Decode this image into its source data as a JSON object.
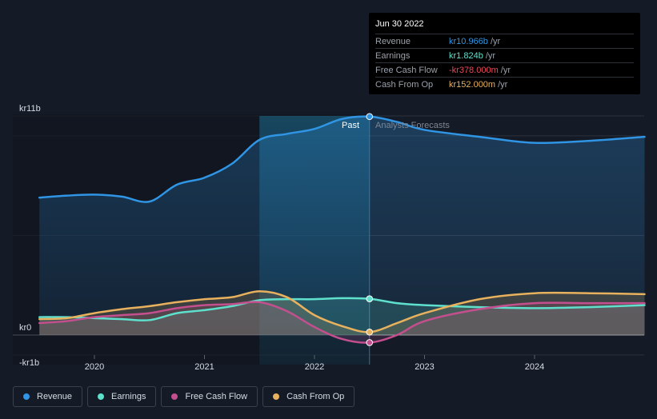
{
  "tooltip": {
    "date": "Jun 30 2022",
    "rows": [
      {
        "label": "Revenue",
        "value": "kr10.966b",
        "unit": "/yr",
        "color": "#2f95e4"
      },
      {
        "label": "Earnings",
        "value": "kr1.824b",
        "unit": "/yr",
        "color": "#5ee0cc"
      },
      {
        "label": "Free Cash Flow",
        "value": "-kr378.000m",
        "unit": "/yr",
        "color": "#e8495a"
      },
      {
        "label": "Cash From Op",
        "value": "kr152.000m",
        "unit": "/yr",
        "color": "#e8b15e"
      }
    ]
  },
  "sections": {
    "past": "Past",
    "forecast": "Analysts Forecasts"
  },
  "legend": [
    {
      "label": "Revenue",
      "color": "#2f95e4"
    },
    {
      "label": "Earnings",
      "color": "#5ee0cc"
    },
    {
      "label": "Free Cash Flow",
      "color": "#c44f8e"
    },
    {
      "label": "Cash From Op",
      "color": "#e8b15e"
    }
  ],
  "chart_data": {
    "type": "line",
    "title": "",
    "xlabel": "",
    "ylabel": "",
    "y_tick_labels": [
      "kr11b",
      "kr0",
      "-kr1b"
    ],
    "y_ticks": [
      11,
      0,
      -1
    ],
    "ylim": [
      -1,
      11
    ],
    "xlim": [
      2019.5,
      2025.0
    ],
    "x_tick_labels": [
      "2020",
      "2021",
      "2022",
      "2023",
      "2024"
    ],
    "x_ticks": [
      2020,
      2021,
      2022,
      2023,
      2024
    ],
    "past_end": 2022.5,
    "highlight_range": [
      2021.5,
      2022.5
    ],
    "series": [
      {
        "name": "Revenue",
        "color": "#2f95e4",
        "x": [
          2019.5,
          2019.75,
          2020.0,
          2020.25,
          2020.5,
          2020.75,
          2021.0,
          2021.25,
          2021.5,
          2021.75,
          2022.0,
          2022.25,
          2022.5,
          2022.75,
          2023.0,
          2023.5,
          2024.0,
          2024.5,
          2025.0
        ],
        "values": [
          6.9,
          7.0,
          7.05,
          6.95,
          6.7,
          7.55,
          7.9,
          8.6,
          9.8,
          10.1,
          10.35,
          10.85,
          10.97,
          10.7,
          10.3,
          9.95,
          9.65,
          9.75,
          9.95
        ]
      },
      {
        "name": "Earnings",
        "color": "#5ee0cc",
        "x": [
          2019.5,
          2019.75,
          2020.0,
          2020.25,
          2020.5,
          2020.75,
          2021.0,
          2021.25,
          2021.5,
          2021.75,
          2022.0,
          2022.25,
          2022.5,
          2022.75,
          2023.0,
          2023.5,
          2024.0,
          2024.5,
          2025.0
        ],
        "values": [
          0.9,
          0.9,
          0.85,
          0.8,
          0.75,
          1.1,
          1.25,
          1.45,
          1.75,
          1.8,
          1.8,
          1.85,
          1.82,
          1.6,
          1.5,
          1.4,
          1.35,
          1.4,
          1.5
        ]
      },
      {
        "name": "Free Cash Flow",
        "color": "#c44f8e",
        "x": [
          2019.5,
          2019.75,
          2020.0,
          2020.25,
          2020.5,
          2020.75,
          2021.0,
          2021.25,
          2021.5,
          2021.75,
          2022.0,
          2022.25,
          2022.5,
          2022.75,
          2023.0,
          2023.5,
          2024.0,
          2024.5,
          2025.0
        ],
        "values": [
          0.6,
          0.7,
          0.9,
          1.0,
          1.1,
          1.35,
          1.5,
          1.55,
          1.65,
          1.2,
          0.4,
          -0.2,
          -0.38,
          0.0,
          0.7,
          1.3,
          1.6,
          1.6,
          1.6
        ]
      },
      {
        "name": "Cash From Op",
        "color": "#e8b15e",
        "x": [
          2019.5,
          2019.75,
          2020.0,
          2020.25,
          2020.5,
          2020.75,
          2021.0,
          2021.25,
          2021.5,
          2021.75,
          2022.0,
          2022.25,
          2022.5,
          2022.75,
          2023.0,
          2023.5,
          2024.0,
          2024.5,
          2025.0
        ],
        "values": [
          0.8,
          0.85,
          1.1,
          1.3,
          1.45,
          1.65,
          1.8,
          1.9,
          2.2,
          1.9,
          1.0,
          0.45,
          0.15,
          0.6,
          1.1,
          1.8,
          2.1,
          2.1,
          2.05
        ]
      }
    ]
  }
}
